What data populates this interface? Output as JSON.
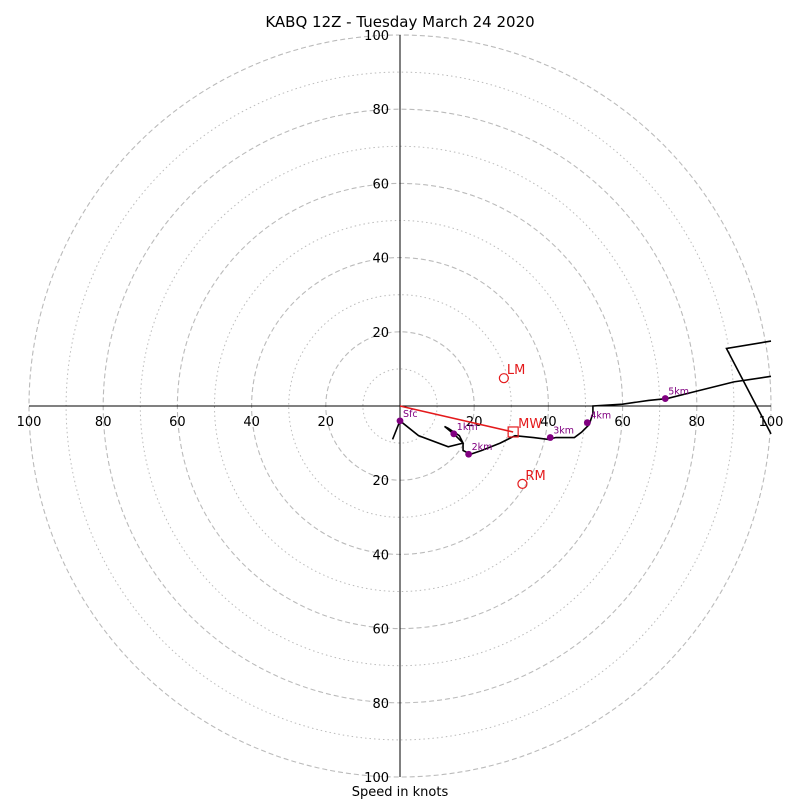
{
  "chart_data": {
    "type": "scatter",
    "title": "KABQ 12Z - Tuesday March 24 2020",
    "xlabel": "Speed in knots",
    "ylabel": "",
    "xlim": [
      -100,
      100
    ],
    "ylim": [
      -100,
      100
    ],
    "tick_labels": [
      "100",
      "80",
      "60",
      "40",
      "20",
      "20",
      "40",
      "60",
      "80",
      "100"
    ],
    "x_tick_values": [
      -100,
      -80,
      -60,
      -40,
      -20,
      20,
      40,
      60,
      80,
      100
    ],
    "y_tick_values": [
      100,
      80,
      60,
      40,
      20,
      -20,
      -40,
      -60,
      -80,
      -100
    ],
    "rings_dashed": [
      20,
      40,
      60,
      80,
      100
    ],
    "rings_dotted": [
      10,
      30,
      50,
      70,
      90
    ],
    "hodograph_trace": [
      [
        -2,
        -9
      ],
      [
        0,
        -4
      ],
      [
        5,
        -8
      ],
      [
        13,
        -11
      ],
      [
        17,
        -10
      ],
      [
        16,
        -8
      ],
      [
        13,
        -6
      ],
      [
        12,
        -5.5
      ],
      [
        15,
        -8
      ],
      [
        17,
        -10
      ],
      [
        17,
        -12
      ],
      [
        19,
        -13
      ],
      [
        22,
        -12
      ],
      [
        27,
        -10
      ],
      [
        31,
        -8
      ],
      [
        36,
        -8.5
      ],
      [
        40,
        -9
      ],
      [
        42,
        -8.5
      ],
      [
        47,
        -8.5
      ],
      [
        49,
        -7
      ],
      [
        51,
        -5
      ],
      [
        52,
        -2
      ],
      [
        52,
        0
      ],
      [
        60,
        0.5
      ],
      [
        67,
        1.5
      ],
      [
        72,
        2
      ],
      [
        80,
        4
      ],
      [
        90,
        6.5
      ],
      [
        100,
        8
      ]
    ],
    "upper_trace": [
      [
        100,
        17.5
      ],
      [
        88,
        15.5
      ],
      [
        100,
        -7.5
      ]
    ],
    "height_points": [
      {
        "label": "Sfc",
        "x": 0,
        "y": -4
      },
      {
        "label": "1km",
        "x": 14.5,
        "y": -7.5
      },
      {
        "label": "2km",
        "x": 18.5,
        "y": -13
      },
      {
        "label": "3km",
        "x": 40.5,
        "y": -8.5
      },
      {
        "label": "4km",
        "x": 50.5,
        "y": -4.5
      },
      {
        "label": "5km",
        "x": 71.5,
        "y": 2
      }
    ],
    "mean_wind": {
      "label": "MW",
      "x": 30.5,
      "y": -7
    },
    "left_mover": {
      "label": "LM",
      "x": 28,
      "y": 7.5
    },
    "right_mover": {
      "label": "RM",
      "x": 33,
      "y": -21
    },
    "shear_vector": {
      "from": [
        0,
        0
      ],
      "to": [
        30.5,
        -7
      ]
    },
    "colors": {
      "trace": "#000000",
      "height_points": "#800080",
      "motions": "#e41a1c",
      "rings": "#bbbbbb",
      "axes": "#000000"
    },
    "grid": true
  }
}
